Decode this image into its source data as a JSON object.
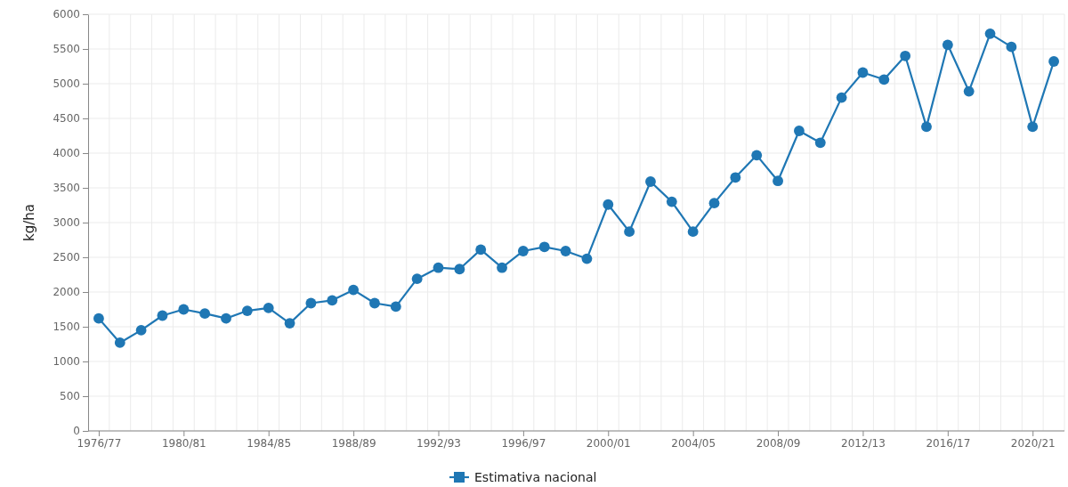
{
  "chart_data": {
    "type": "line",
    "ylabel": "kg/ha",
    "categories": [
      "1976/77",
      null,
      null,
      null,
      "1980/81",
      null,
      null,
      null,
      "1984/85",
      null,
      null,
      null,
      "1988/89",
      null,
      null,
      null,
      "1992/93",
      null,
      null,
      null,
      "1996/97",
      null,
      null,
      null,
      "2000/01",
      null,
      null,
      null,
      "2004/05",
      null,
      null,
      null,
      "2008/09",
      null,
      null,
      null,
      "2012/13",
      null,
      null,
      null,
      "2016/17",
      null,
      null,
      null,
      "2020/21",
      null
    ],
    "series": [
      {
        "name": "Estimativa nacional",
        "color": "#1f77b4",
        "values": [
          1620,
          1270,
          1450,
          1660,
          1750,
          1690,
          1620,
          1730,
          1770,
          1550,
          1840,
          1880,
          2030,
          1840,
          1790,
          2190,
          2350,
          2330,
          2610,
          2350,
          2590,
          2650,
          2590,
          2480,
          3260,
          2870,
          3590,
          3300,
          2870,
          3280,
          3650,
          3970,
          3600,
          4320,
          4150,
          4800,
          5160,
          5060,
          5400,
          4380,
          5560,
          4890,
          5720,
          5530,
          4380,
          5320
        ]
      }
    ],
    "ylim": [
      0,
      6000
    ],
    "yticks": [
      0,
      500,
      1000,
      1500,
      2000,
      2500,
      3000,
      3500,
      4000,
      4500,
      5000,
      5500,
      6000
    ],
    "grid": true,
    "legend": "bottom",
    "marker": "circle",
    "line_style": "solid"
  }
}
